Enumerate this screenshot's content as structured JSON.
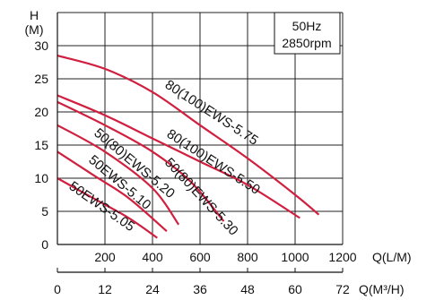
{
  "chart_data": {
    "type": "line",
    "annotation_box": [
      "50Hz",
      "2850rpm"
    ],
    "y_axis": {
      "label_top": "H",
      "label_unit": "(M)",
      "ylim": [
        0,
        35
      ],
      "ticks": [
        "0",
        "5",
        "10",
        "15",
        "20",
        "25",
        "30"
      ]
    },
    "x_axis_primary": {
      "label": "Q(L/M)",
      "xlim": [
        0,
        1200
      ],
      "ticks": [
        "200",
        "400",
        "600",
        "800",
        "1000",
        "1200"
      ]
    },
    "x_axis_secondary": {
      "label": "Q(M³/H)",
      "ticks": [
        "0",
        "12",
        "24",
        "36",
        "48",
        "60",
        "72"
      ]
    },
    "grid": true,
    "color": "#d11f3f",
    "series": [
      {
        "name": "80(100)EWS-5.75",
        "x": [
          0,
          200,
          400,
          600,
          800,
          1000,
          1100
        ],
        "y": [
          28.5,
          26.5,
          23,
          18,
          13,
          7.5,
          4.5
        ]
      },
      {
        "name": "80(100)EWS-5.50",
        "x": [
          0,
          200,
          400,
          600,
          800,
          1020
        ],
        "y": [
          22.5,
          19.5,
          16,
          12.5,
          9,
          4
        ]
      },
      {
        "name": "50(80)EWS-5.30",
        "x": [
          0,
          200,
          400,
          560,
          700
        ],
        "y": [
          21.5,
          18,
          14,
          9.5,
          3.5
        ]
      },
      {
        "name": "50(80)EWS-5.20",
        "x": [
          0,
          200,
          400,
          510
        ],
        "y": [
          18,
          14,
          8.5,
          3
        ]
      },
      {
        "name": "50EWS-5.10",
        "x": [
          0,
          150,
          300,
          460
        ],
        "y": [
          14,
          10.5,
          7,
          2
        ]
      },
      {
        "name": "50EWS-5.05",
        "x": [
          0,
          150,
          300,
          420
        ],
        "y": [
          10,
          7,
          4,
          1
        ]
      }
    ]
  }
}
